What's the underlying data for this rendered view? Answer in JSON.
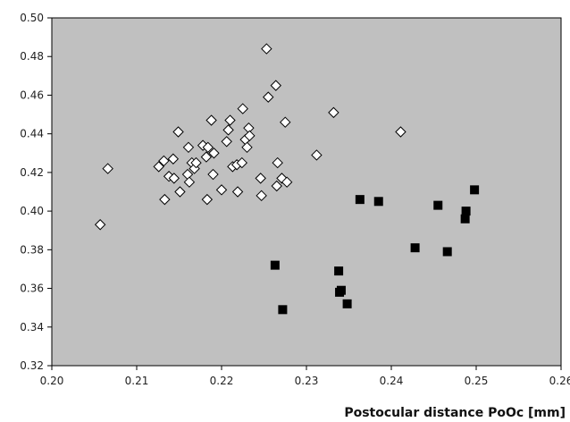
{
  "chart_data": {
    "type": "scatter",
    "title": "",
    "xlabel": "Postocular distance PoOc [mm]",
    "ylabel": "",
    "xlim": [
      0.2,
      0.26
    ],
    "ylim": [
      0.32,
      0.5
    ],
    "x_ticks": [
      0.2,
      0.21,
      0.22,
      0.23,
      0.24,
      0.25,
      0.26
    ],
    "x_tick_labels": [
      "0.20",
      "0.21",
      "0.22",
      "0.23",
      "0.24",
      "0.25",
      "0.26"
    ],
    "y_ticks": [
      0.32,
      0.34,
      0.36,
      0.38,
      0.4,
      0.42,
      0.44,
      0.46,
      0.48,
      0.5
    ],
    "y_tick_labels": [
      "0.32",
      "0.34",
      "0.36",
      "0.38",
      "0.40",
      "0.42",
      "0.44",
      "0.46",
      "0.48",
      "0.50"
    ],
    "grid": false,
    "legend": "none",
    "plot_background": "#c0c0c0",
    "series": [
      {
        "marker": "diamond-open",
        "color": "#ffffff",
        "points": [
          [
            0.2057,
            0.393
          ],
          [
            0.2066,
            0.422
          ],
          [
            0.2126,
            0.423
          ],
          [
            0.2132,
            0.426
          ],
          [
            0.2133,
            0.406
          ],
          [
            0.2138,
            0.418
          ],
          [
            0.2143,
            0.427
          ],
          [
            0.2144,
            0.417
          ],
          [
            0.2149,
            0.441
          ],
          [
            0.2151,
            0.41
          ],
          [
            0.216,
            0.419
          ],
          [
            0.2161,
            0.433
          ],
          [
            0.2162,
            0.415
          ],
          [
            0.2165,
            0.425
          ],
          [
            0.2168,
            0.422
          ],
          [
            0.217,
            0.425
          ],
          [
            0.2178,
            0.434
          ],
          [
            0.2182,
            0.428
          ],
          [
            0.2183,
            0.406
          ],
          [
            0.2184,
            0.433
          ],
          [
            0.2188,
            0.447
          ],
          [
            0.219,
            0.419
          ],
          [
            0.2191,
            0.43
          ],
          [
            0.22,
            0.411
          ],
          [
            0.2206,
            0.436
          ],
          [
            0.2208,
            0.442
          ],
          [
            0.221,
            0.447
          ],
          [
            0.2213,
            0.423
          ],
          [
            0.2218,
            0.424
          ],
          [
            0.2219,
            0.41
          ],
          [
            0.2224,
            0.425
          ],
          [
            0.2225,
            0.453
          ],
          [
            0.2228,
            0.437
          ],
          [
            0.223,
            0.433
          ],
          [
            0.2232,
            0.443
          ],
          [
            0.2233,
            0.439
          ],
          [
            0.2246,
            0.417
          ],
          [
            0.2247,
            0.408
          ],
          [
            0.2253,
            0.484
          ],
          [
            0.2255,
            0.459
          ],
          [
            0.2264,
            0.465
          ],
          [
            0.2265,
            0.413
          ],
          [
            0.2266,
            0.425
          ],
          [
            0.2271,
            0.417
          ],
          [
            0.2275,
            0.446
          ],
          [
            0.2277,
            0.415
          ],
          [
            0.2312,
            0.429
          ],
          [
            0.2332,
            0.451
          ],
          [
            0.2411,
            0.441
          ]
        ]
      },
      {
        "marker": "square-filled",
        "color": "#000000",
        "points": [
          [
            0.2263,
            0.372
          ],
          [
            0.2272,
            0.349
          ],
          [
            0.2338,
            0.369
          ],
          [
            0.2339,
            0.358
          ],
          [
            0.2341,
            0.359
          ],
          [
            0.2348,
            0.352
          ],
          [
            0.2363,
            0.406
          ],
          [
            0.2385,
            0.405
          ],
          [
            0.2428,
            0.381
          ],
          [
            0.2455,
            0.403
          ],
          [
            0.2466,
            0.379
          ],
          [
            0.2487,
            0.396
          ],
          [
            0.2488,
            0.4
          ],
          [
            0.2498,
            0.411
          ]
        ]
      }
    ]
  }
}
